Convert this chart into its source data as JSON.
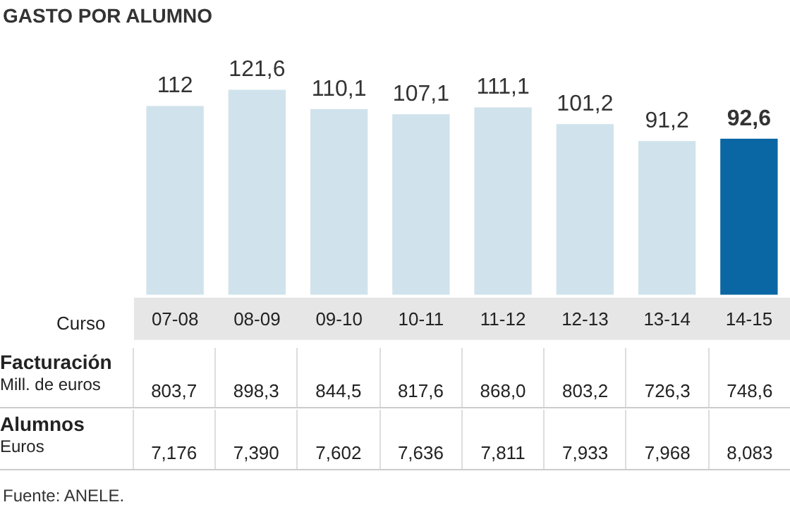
{
  "chart_data": {
    "type": "bar",
    "title": "GASTO POR ALUMNO",
    "xlabel": "Curso",
    "categories": [
      "07-08",
      "08-09",
      "09-10",
      "10-11",
      "11-12",
      "12-13",
      "13-14",
      "14-15"
    ],
    "values": [
      112,
      121.6,
      110.1,
      107.1,
      111.1,
      101.2,
      91.2,
      92.6
    ],
    "value_labels": [
      "112",
      "121,6",
      "110,1",
      "107,1",
      "111,1",
      "101,2",
      "91,2",
      "92,6"
    ],
    "colors": [
      "#d0e3ec",
      "#d0e3ec",
      "#d0e3ec",
      "#d0e3ec",
      "#d0e3ec",
      "#d0e3ec",
      "#d0e3ec",
      "#0a67a3"
    ],
    "grid": false,
    "legend": false,
    "annotations": [
      "Facturación",
      "Mill. de euros",
      "803,7",
      "898,3",
      "844,5",
      "817,6",
      "868,0",
      "803,2",
      "726,3",
      "748,6",
      "Alumnos",
      "Euros",
      "7,176",
      "7,390",
      "7,602",
      "7,636",
      "7,811",
      "7,933",
      "7,968",
      "8,083",
      "Fuente: ANELE."
    ]
  }
}
